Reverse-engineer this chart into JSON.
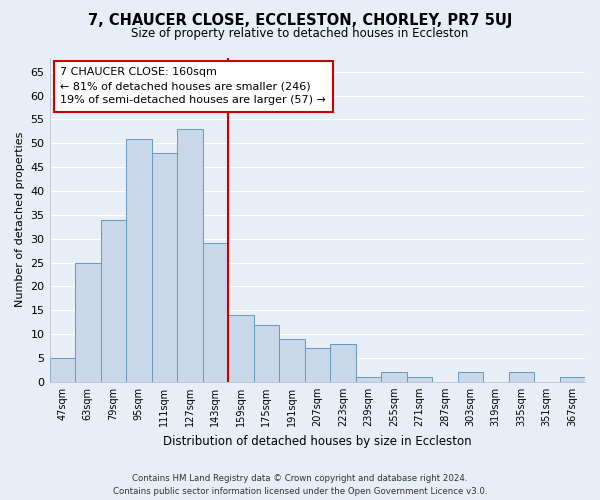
{
  "title": "7, CHAUCER CLOSE, ECCLESTON, CHORLEY, PR7 5UJ",
  "subtitle": "Size of property relative to detached houses in Eccleston",
  "xlabel": "Distribution of detached houses by size in Eccleston",
  "ylabel": "Number of detached properties",
  "categories": [
    "47sqm",
    "63sqm",
    "79sqm",
    "95sqm",
    "111sqm",
    "127sqm",
    "143sqm",
    "159sqm",
    "175sqm",
    "191sqm",
    "207sqm",
    "223sqm",
    "239sqm",
    "255sqm",
    "271sqm",
    "287sqm",
    "303sqm",
    "319sqm",
    "335sqm",
    "351sqm",
    "367sqm"
  ],
  "values": [
    5,
    25,
    34,
    51,
    48,
    53,
    29,
    14,
    12,
    9,
    7,
    8,
    1,
    2,
    1,
    0,
    2,
    0,
    2,
    0,
    1
  ],
  "bar_color": "#c8d8ea",
  "bar_edge_color": "#6699bb",
  "highlight_line_color": "#cc0000",
  "annotation_box_color": "#ffffff",
  "annotation_box_edge_color": "#cc0000",
  "annotation_title": "7 CHAUCER CLOSE: 160sqm",
  "annotation_line1": "← 81% of detached houses are smaller (246)",
  "annotation_line2": "19% of semi-detached houses are larger (57) →",
  "ylim": [
    0,
    68
  ],
  "yticks": [
    0,
    5,
    10,
    15,
    20,
    25,
    30,
    35,
    40,
    45,
    50,
    55,
    60,
    65
  ],
  "footer_line1": "Contains HM Land Registry data © Crown copyright and database right 2024.",
  "footer_line2": "Contains public sector information licensed under the Open Government Licence v3.0.",
  "bg_color": "#e8eef5",
  "plot_bg_color": "#e8eef5",
  "grid_color": "#ffffff",
  "title_fontsize": 10.5,
  "subtitle_fontsize": 8.5
}
